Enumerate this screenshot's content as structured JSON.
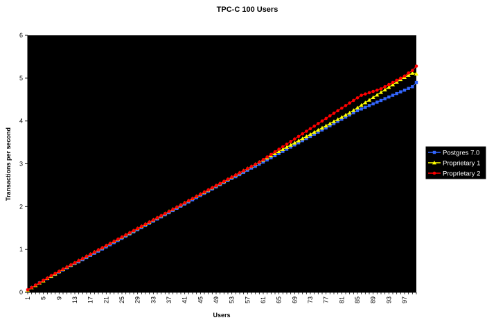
{
  "chart_data": {
    "type": "line",
    "title": "TPC-C 100 Users",
    "xlabel": "Users",
    "ylabel": "Transactions per second",
    "xlim": [
      1,
      100
    ],
    "ylim": [
      0,
      6
    ],
    "yticks": [
      "0",
      "1",
      "2",
      "3",
      "4",
      "5",
      "6"
    ],
    "xticks": [
      "1",
      "5",
      "9",
      "13",
      "17",
      "21",
      "25",
      "29",
      "33",
      "37",
      "41",
      "45",
      "49",
      "53",
      "57",
      "61",
      "65",
      "69",
      "73",
      "77",
      "81",
      "85",
      "89",
      "93",
      "97"
    ],
    "plot_background": "#000000",
    "legend_position": "right",
    "series": [
      {
        "name": "Postgres 7.0",
        "color": "#3366ff",
        "marker": "square",
        "values": [
          0.05,
          0.11,
          0.16,
          0.22,
          0.27,
          0.32,
          0.37,
          0.42,
          0.47,
          0.52,
          0.57,
          0.62,
          0.67,
          0.71,
          0.76,
          0.81,
          0.86,
          0.91,
          0.96,
          1.01,
          1.06,
          1.11,
          1.16,
          1.21,
          1.26,
          1.31,
          1.36,
          1.41,
          1.46,
          1.51,
          1.56,
          1.61,
          1.66,
          1.71,
          1.76,
          1.81,
          1.86,
          1.91,
          1.96,
          2.01,
          2.06,
          2.11,
          2.16,
          2.21,
          2.26,
          2.31,
          2.36,
          2.41,
          2.46,
          2.51,
          2.56,
          2.61,
          2.66,
          2.7,
          2.75,
          2.8,
          2.85,
          2.9,
          2.94,
          2.99,
          3.04,
          3.09,
          3.14,
          3.19,
          3.24,
          3.29,
          3.34,
          3.39,
          3.44,
          3.49,
          3.54,
          3.59,
          3.64,
          3.69,
          3.74,
          3.79,
          3.84,
          3.89,
          3.94,
          3.99,
          4.04,
          4.09,
          4.14,
          4.19,
          4.24,
          4.28,
          4.32,
          4.36,
          4.4,
          4.44,
          4.48,
          4.52,
          4.56,
          4.6,
          4.64,
          4.68,
          4.72,
          4.76,
          4.8,
          4.9
        ]
      },
      {
        "name": "Proprietary 1",
        "color": "#ffff00",
        "marker": "triangle",
        "values": [
          0.05,
          0.11,
          0.16,
          0.22,
          0.27,
          0.33,
          0.38,
          0.43,
          0.49,
          0.54,
          0.59,
          0.64,
          0.69,
          0.74,
          0.79,
          0.84,
          0.89,
          0.94,
          0.99,
          1.04,
          1.09,
          1.14,
          1.19,
          1.24,
          1.29,
          1.34,
          1.39,
          1.44,
          1.49,
          1.54,
          1.59,
          1.64,
          1.69,
          1.74,
          1.79,
          1.84,
          1.89,
          1.94,
          1.99,
          2.04,
          2.09,
          2.14,
          2.19,
          2.24,
          2.29,
          2.34,
          2.39,
          2.44,
          2.49,
          2.54,
          2.59,
          2.64,
          2.69,
          2.74,
          2.79,
          2.84,
          2.89,
          2.94,
          2.99,
          3.04,
          3.09,
          3.14,
          3.19,
          3.24,
          3.29,
          3.34,
          3.39,
          3.44,
          3.49,
          3.54,
          3.59,
          3.64,
          3.69,
          3.74,
          3.79,
          3.84,
          3.89,
          3.94,
          3.99,
          4.04,
          4.09,
          4.14,
          4.19,
          4.25,
          4.31,
          4.37,
          4.43,
          4.49,
          4.55,
          4.61,
          4.67,
          4.73,
          4.79,
          4.85,
          4.91,
          4.97,
          5.02,
          5.07,
          5.12,
          5.1
        ]
      },
      {
        "name": "Proprietary 2",
        "color": "#ff0000",
        "marker": "circle",
        "values": [
          0.06,
          0.11,
          0.17,
          0.22,
          0.28,
          0.33,
          0.39,
          0.44,
          0.49,
          0.54,
          0.59,
          0.64,
          0.69,
          0.74,
          0.79,
          0.84,
          0.89,
          0.94,
          0.99,
          1.04,
          1.09,
          1.14,
          1.19,
          1.24,
          1.29,
          1.34,
          1.39,
          1.44,
          1.49,
          1.54,
          1.59,
          1.64,
          1.69,
          1.74,
          1.79,
          1.84,
          1.89,
          1.94,
          1.99,
          2.04,
          2.09,
          2.14,
          2.19,
          2.24,
          2.29,
          2.34,
          2.39,
          2.44,
          2.49,
          2.54,
          2.59,
          2.64,
          2.69,
          2.74,
          2.79,
          2.84,
          2.89,
          2.94,
          2.99,
          3.04,
          3.1,
          3.16,
          3.22,
          3.28,
          3.34,
          3.4,
          3.46,
          3.52,
          3.58,
          3.64,
          3.7,
          3.76,
          3.82,
          3.88,
          3.94,
          4.0,
          4.06,
          4.12,
          4.18,
          4.24,
          4.3,
          4.36,
          4.42,
          4.48,
          4.54,
          4.6,
          4.63,
          4.66,
          4.69,
          4.72,
          4.75,
          4.8,
          4.85,
          4.9,
          4.95,
          5.0,
          5.05,
          5.12,
          5.18,
          5.28
        ]
      }
    ]
  }
}
